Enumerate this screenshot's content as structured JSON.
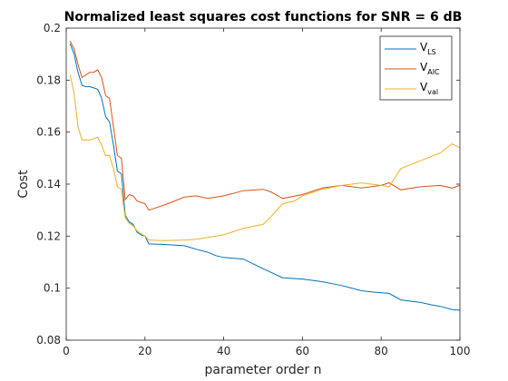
{
  "chart_data": {
    "type": "line",
    "title": "Normalized least squares cost functions for SNR = 6 dB",
    "xlabel": "parameter order n",
    "ylabel": "Cost",
    "xlim": [
      0,
      100
    ],
    "ylim": [
      0.08,
      0.2
    ],
    "xticks": [
      "0",
      "20",
      "40",
      "60",
      "80",
      "100"
    ],
    "yticks": [
      "0.08",
      "0.1",
      "0.12",
      "0.14",
      "0.16",
      "0.18",
      "0.2"
    ],
    "grid": false,
    "legend_position": "top-right",
    "series": [
      {
        "name": "V",
        "subscript": "LS",
        "color": "#0072BD",
        "x": [
          1,
          2,
          3,
          4,
          5,
          6,
          7,
          8,
          9,
          10,
          11,
          12,
          13,
          14,
          15,
          16,
          17,
          18,
          19,
          20,
          21,
          25,
          30,
          33,
          36,
          38,
          40,
          45,
          50,
          55,
          60,
          65,
          70,
          75,
          78,
          82,
          85,
          90,
          93,
          95,
          98,
          100
        ],
        "y": [
          0.194,
          0.19,
          0.183,
          0.178,
          0.1775,
          0.1775,
          0.177,
          0.1765,
          0.173,
          0.166,
          0.164,
          0.155,
          0.145,
          0.144,
          0.128,
          0.1255,
          0.1245,
          0.1215,
          0.1205,
          0.12,
          0.117,
          0.1168,
          0.1163,
          0.115,
          0.1138,
          0.1125,
          0.1118,
          0.1112,
          0.1075,
          0.104,
          0.1035,
          0.1025,
          0.101,
          0.099,
          0.0985,
          0.098,
          0.0955,
          0.0945,
          0.0935,
          0.093,
          0.0918,
          0.0915
        ]
      },
      {
        "name": "V",
        "subscript": "AIC",
        "color": "#D95319",
        "x": [
          1,
          2,
          3,
          4,
          5,
          6,
          7,
          8,
          9,
          10,
          11,
          12,
          13,
          14,
          15,
          16,
          17,
          18,
          19,
          20,
          21,
          25,
          30,
          33,
          36,
          40,
          45,
          50,
          52,
          55,
          60,
          65,
          70,
          75,
          80,
          82,
          85,
          90,
          95,
          98,
          100
        ],
        "y": [
          0.195,
          0.192,
          0.186,
          0.181,
          0.182,
          0.183,
          0.183,
          0.184,
          0.181,
          0.174,
          0.173,
          0.162,
          0.151,
          0.15,
          0.134,
          0.136,
          0.1355,
          0.1335,
          0.133,
          0.1325,
          0.13,
          0.132,
          0.135,
          0.1355,
          0.1345,
          0.1355,
          0.1375,
          0.138,
          0.137,
          0.1345,
          0.136,
          0.1385,
          0.1395,
          0.1385,
          0.1395,
          0.1405,
          0.1378,
          0.139,
          0.1395,
          0.1385,
          0.1395
        ]
      },
      {
        "name": "V",
        "subscript": "val",
        "color": "#EDB120",
        "x": [
          1,
          2,
          3,
          4,
          5,
          6,
          7,
          8,
          9,
          10,
          11,
          12,
          13,
          14,
          15,
          16,
          17,
          18,
          19,
          20,
          21,
          25,
          30,
          33,
          36,
          40,
          45,
          50,
          52,
          55,
          58,
          60,
          65,
          70,
          75,
          80,
          82,
          85,
          90,
          95,
          98,
          100
        ],
        "y": [
          0.182,
          0.175,
          0.162,
          0.157,
          0.157,
          0.157,
          0.1575,
          0.158,
          0.155,
          0.151,
          0.151,
          0.146,
          0.139,
          0.138,
          0.127,
          0.125,
          0.124,
          0.122,
          0.121,
          0.12,
          0.1185,
          0.1183,
          0.1185,
          0.1188,
          0.1195,
          0.1205,
          0.123,
          0.1245,
          0.1275,
          0.1325,
          0.1335,
          0.1355,
          0.138,
          0.1395,
          0.1405,
          0.1395,
          0.139,
          0.146,
          0.149,
          0.152,
          0.1555,
          0.154
        ]
      }
    ]
  }
}
